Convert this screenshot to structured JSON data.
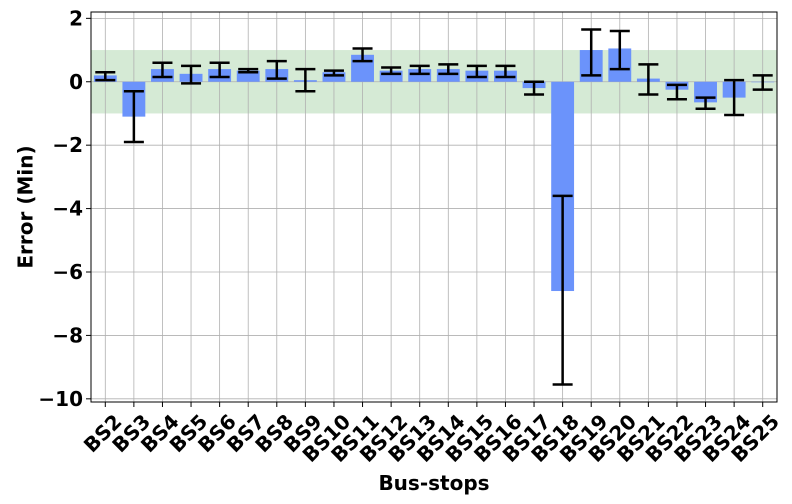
{
  "chart_data": {
    "type": "bar",
    "xlabel": "Bus-stops",
    "ylabel": "Error (Min)",
    "ylim": [
      -10.1,
      2.2
    ],
    "grid": true,
    "yticks": [
      2,
      0,
      -2,
      -4,
      -6,
      -8,
      -10
    ],
    "ytick_labels": [
      "2",
      "0",
      "−2",
      "−4",
      "−6",
      "−8",
      "−10"
    ],
    "band": {
      "from": -1,
      "to": 1,
      "color": "#d5ead5"
    },
    "bar_color": "#6b93fb",
    "errorbar_color": "#000000",
    "categories": [
      "BS2",
      "BS3",
      "BS4",
      "BS5",
      "BS6",
      "BS7",
      "BS8",
      "BS9",
      "BS10",
      "BS11",
      "BS12",
      "BS13",
      "BS14",
      "BS15",
      "BS16",
      "BS17",
      "BS18",
      "BS19",
      "BS20",
      "BS21",
      "BS22",
      "BS23",
      "BS24",
      "BS25"
    ],
    "values": [
      0.2,
      -1.1,
      0.4,
      0.25,
      0.4,
      0.35,
      0.4,
      0.05,
      0.3,
      0.85,
      0.35,
      0.4,
      0.4,
      0.35,
      0.35,
      -0.2,
      -6.6,
      1.0,
      1.05,
      0.1,
      -0.25,
      -0.65,
      -0.5,
      0.0
    ],
    "error_low": [
      0.05,
      -1.9,
      0.15,
      -0.05,
      0.15,
      0.3,
      0.1,
      -0.3,
      0.2,
      0.65,
      0.25,
      0.25,
      0.25,
      0.15,
      0.15,
      -0.4,
      -9.55,
      0.2,
      0.4,
      -0.4,
      -0.55,
      -0.85,
      -1.05,
      -0.25
    ],
    "error_high": [
      0.3,
      -0.3,
      0.6,
      0.5,
      0.6,
      0.4,
      0.65,
      0.4,
      0.35,
      1.05,
      0.45,
      0.5,
      0.55,
      0.5,
      0.5,
      0.0,
      -3.6,
      1.65,
      1.6,
      0.55,
      -0.1,
      -0.5,
      0.05,
      0.2
    ]
  }
}
